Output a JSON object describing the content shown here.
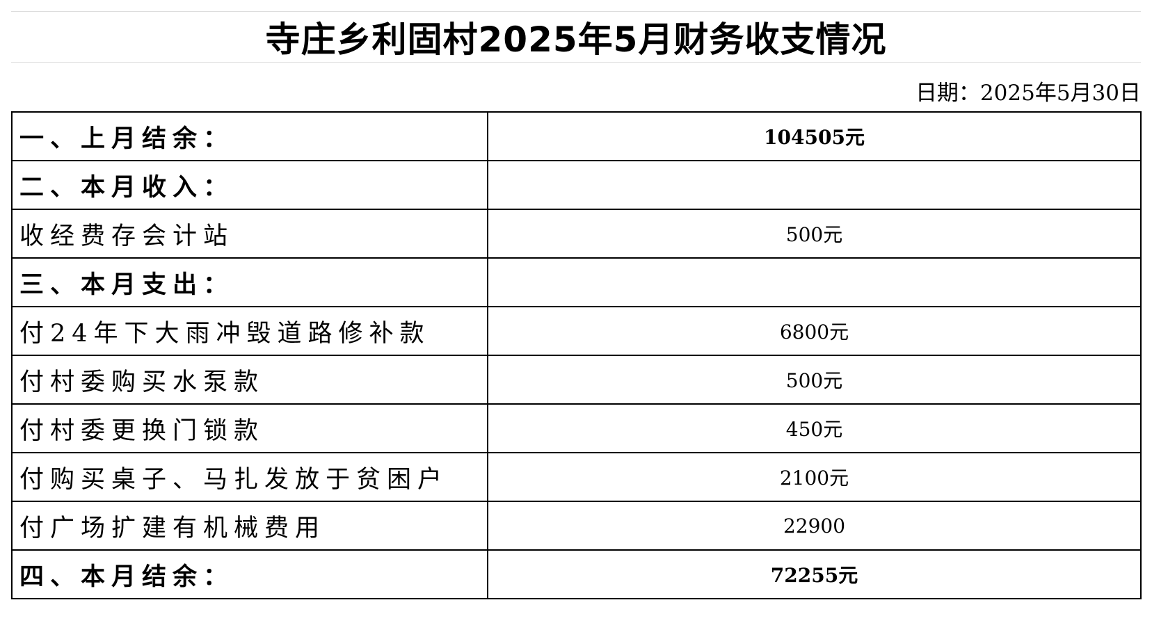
{
  "title": "寺庄乡利固村2025年5月财务收支情况",
  "date": "日期：2025年5月30日",
  "rows": [
    {
      "item": "一、上月结余：",
      "amount": "104505元",
      "bold": true
    },
    {
      "item": "二、本月收入：",
      "amount": "",
      "bold": true
    },
    {
      "item": "收经费存会计站",
      "amount": "500元",
      "bold": false
    },
    {
      "item": "三、本月支出：",
      "amount": "",
      "bold": true
    },
    {
      "item": "付24年下大雨冲毁道路修补款",
      "amount": "6800元",
      "bold": false
    },
    {
      "item": "付村委购买水泵款",
      "amount": "500元",
      "bold": false
    },
    {
      "item": "付村委更换门锁款",
      "amount": "450元",
      "bold": false
    },
    {
      "item": "付购买桌子、马扎发放于贫困户",
      "amount": "2100元",
      "bold": false
    },
    {
      "item": "付广场扩建有机械费用",
      "amount": "22900",
      "bold": false
    },
    {
      "item": "四、本月结余：",
      "amount": "72255元",
      "bold": true
    }
  ]
}
